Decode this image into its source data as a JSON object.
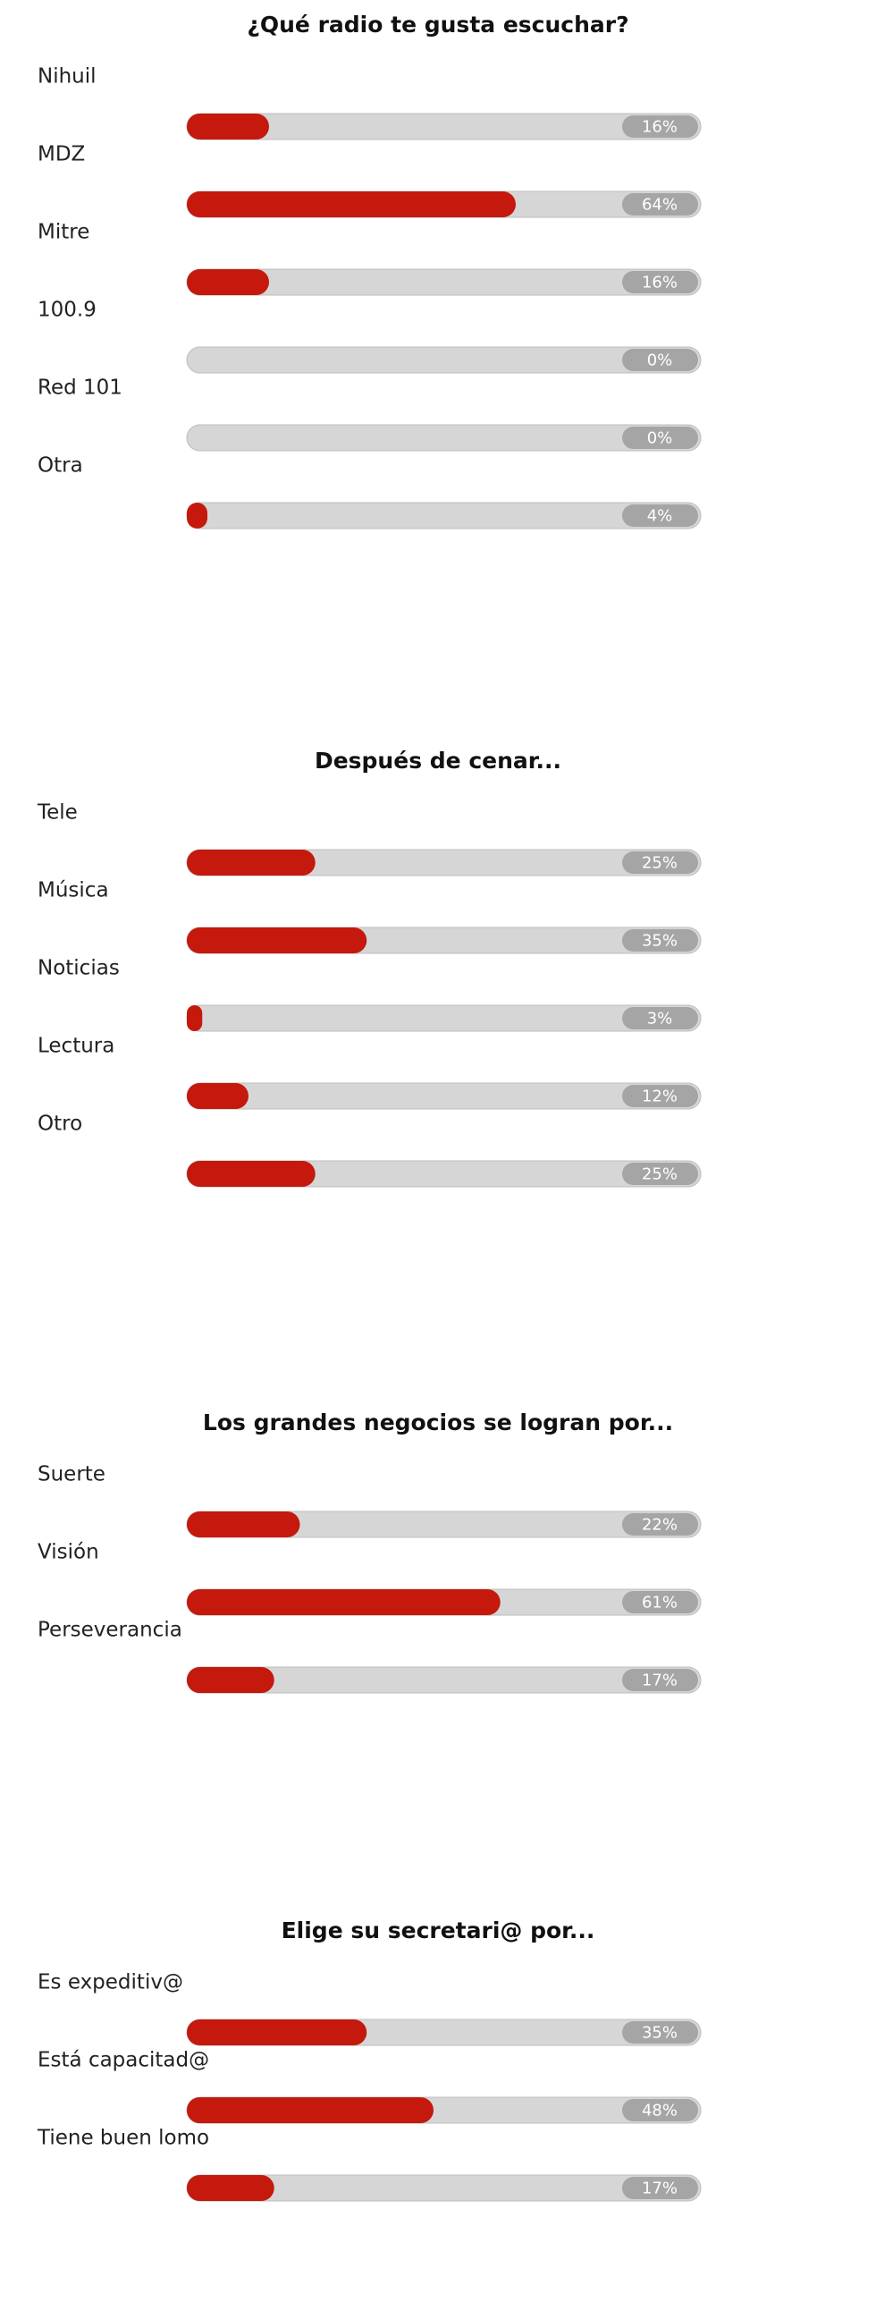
{
  "chart_data": [
    {
      "type": "bar",
      "title": "¿Qué radio te gusta escuchar?",
      "color": "#c4190c",
      "categories": [
        "Nihuil",
        "MDZ",
        "Mitre",
        "100.9",
        "Red 101",
        "Otra"
      ],
      "values": [
        16,
        64,
        16,
        0,
        0,
        4
      ],
      "value_labels": [
        "16%",
        "64%",
        "16%",
        "0%",
        "0%",
        "4%"
      ]
    },
    {
      "type": "bar",
      "title": "Después de cenar...",
      "color": "#c4190c",
      "categories": [
        "Tele",
        "Música",
        "Noticias",
        "Lectura",
        "Otro"
      ],
      "values": [
        25,
        35,
        3,
        12,
        25
      ],
      "value_labels": [
        "25%",
        "35%",
        "3%",
        "12%",
        "25%"
      ]
    },
    {
      "type": "bar",
      "title": "Los grandes negocios se logran por...",
      "color": "#c4190c",
      "categories": [
        "Suerte",
        "Visión",
        "Perseverancia"
      ],
      "values": [
        22,
        61,
        17
      ],
      "value_labels": [
        "22%",
        "61%",
        "17%"
      ]
    },
    {
      "type": "bar",
      "title": "Elige su secretari@ por...",
      "color": "#c4190c",
      "categories": [
        "Es expeditiv@",
        "Está capacitad@",
        "Tiene buen lomo"
      ],
      "values": [
        35,
        48,
        17
      ],
      "value_labels": [
        "35%",
        "48%",
        "17%"
      ]
    }
  ]
}
